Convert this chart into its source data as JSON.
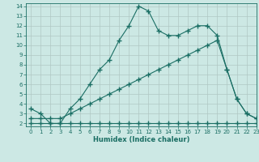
{
  "xlabel": "Humidex (Indice chaleur)",
  "bg_color": "#cce8e4",
  "grid_color": "#b0c8c4",
  "line_color": "#1a6e64",
  "xlim": [
    -0.5,
    23
  ],
  "ylim": [
    1.7,
    14.3
  ],
  "yticks": [
    2,
    3,
    4,
    5,
    6,
    7,
    8,
    9,
    10,
    11,
    12,
    13,
    14
  ],
  "xticks": [
    0,
    1,
    2,
    3,
    4,
    5,
    6,
    7,
    8,
    9,
    10,
    11,
    12,
    13,
    14,
    15,
    16,
    17,
    18,
    19,
    20,
    21,
    22,
    23
  ],
  "line1_x": [
    0,
    1,
    2,
    3,
    4,
    5,
    6,
    7,
    8,
    9,
    10,
    11,
    12,
    13,
    14,
    15,
    16,
    17,
    18,
    19,
    20,
    21,
    22,
    23
  ],
  "line1_y": [
    2.0,
    2.0,
    2.0,
    2.0,
    2.0,
    2.0,
    2.0,
    2.0,
    2.0,
    2.0,
    2.0,
    2.0,
    2.0,
    2.0,
    2.0,
    2.0,
    2.0,
    2.0,
    2.0,
    2.0,
    2.0,
    2.0,
    2.0,
    2.0
  ],
  "line2_x": [
    0,
    1,
    2,
    3,
    4,
    5,
    6,
    7,
    8,
    9,
    10,
    11,
    12,
    13,
    14,
    15,
    16,
    17,
    18,
    19,
    20,
    21,
    22,
    23
  ],
  "line2_y": [
    2.5,
    2.5,
    2.5,
    2.5,
    3.0,
    3.5,
    4.0,
    4.5,
    5.0,
    5.5,
    6.0,
    6.5,
    7.0,
    7.5,
    8.0,
    8.5,
    9.0,
    9.5,
    10.0,
    10.5,
    7.5,
    4.5,
    3.0,
    2.5
  ],
  "line3_x": [
    0,
    1,
    2,
    3,
    4,
    5,
    6,
    7,
    8,
    9,
    10,
    11,
    12,
    13,
    14,
    15,
    16,
    17,
    18,
    19,
    20,
    21,
    22,
    23
  ],
  "line3_y": [
    3.5,
    3.0,
    2.0,
    2.0,
    3.5,
    4.5,
    6.0,
    7.5,
    8.5,
    10.5,
    12.0,
    14.0,
    13.5,
    11.5,
    11.0,
    11.0,
    11.5,
    12.0,
    12.0,
    11.0,
    7.5,
    4.5,
    3.0,
    2.5
  ]
}
